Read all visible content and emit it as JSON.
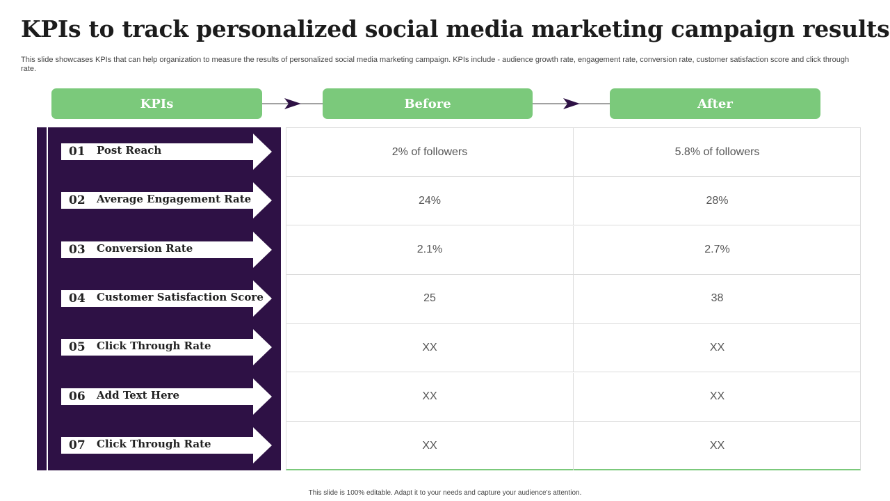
{
  "slide": {
    "title": "KPIs to track personalized social media marketing campaign results",
    "subtitle": "This slide showcases KPIs that can help organization to measure the results of personalized social media marketing campaign. KPIs include - audience growth rate, engagement rate, conversion rate, customer satisfaction score and click through rate.",
    "footer": "This slide is 100% editable.  Adapt it to your needs and capture your audience's attention."
  },
  "headers": {
    "kpis": "KPIs",
    "before": "Before",
    "after": "After"
  },
  "colors": {
    "accent_green": "#7bc97b",
    "panel_purple": "#2e1145"
  },
  "rows": [
    {
      "num": "01",
      "label": "Post Reach",
      "before": "2% of followers",
      "after": "5.8% of followers"
    },
    {
      "num": "02",
      "label": "Average Engagement Rate",
      "before": "24%",
      "after": "28%"
    },
    {
      "num": "03",
      "label": "Conversion Rate",
      "before": "2.1%",
      "after": "2.7%"
    },
    {
      "num": "04",
      "label": "Customer Satisfaction Score",
      "before": "25",
      "after": "38"
    },
    {
      "num": "05",
      "label": "Click Through Rate",
      "before": "XX",
      "after": "XX"
    },
    {
      "num": "06",
      "label": "Add Text Here",
      "before": "XX",
      "after": "XX"
    },
    {
      "num": "07",
      "label": "Click Through Rate",
      "before": "XX",
      "after": "XX"
    }
  ]
}
